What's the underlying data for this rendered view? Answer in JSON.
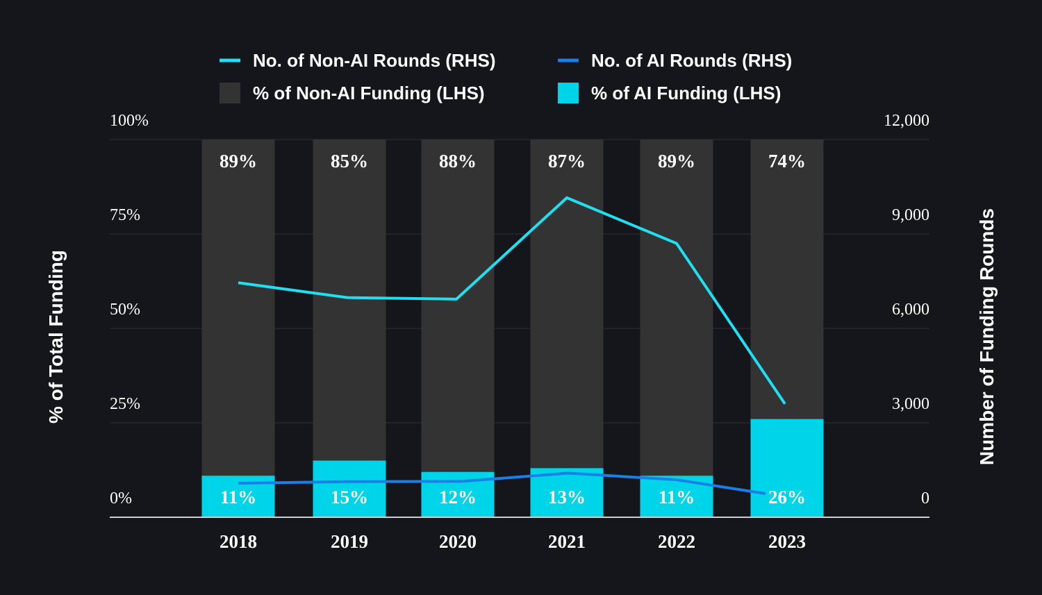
{
  "chart_data": {
    "type": "bar",
    "stacked": true,
    "categories": [
      "2018",
      "2019",
      "2020",
      "2021",
      "2022",
      "2023"
    ],
    "series": [
      {
        "name": "% of AI Funding (LHS)",
        "kind": "bar",
        "axis": "left",
        "values": [
          11,
          15,
          12,
          13,
          11,
          26
        ],
        "labels": [
          "11%",
          "15%",
          "12%",
          "13%",
          "11%",
          "26%"
        ],
        "color": "#00d4e8"
      },
      {
        "name": "% of Non-AI Funding (LHS)",
        "kind": "bar",
        "axis": "left",
        "values": [
          89,
          85,
          88,
          87,
          89,
          74
        ],
        "labels": [
          "89%",
          "85%",
          "88%",
          "87%",
          "89%",
          "74%"
        ],
        "color": "#333333"
      },
      {
        "name": "No. of Non-AI Rounds (RHS)",
        "kind": "line",
        "axis": "right",
        "values": [
          7450,
          6980,
          6930,
          10150,
          8700,
          3600
        ],
        "color": "#1fe0f0"
      },
      {
        "name": "No. of AI Rounds (RHS)",
        "kind": "line",
        "axis": "right",
        "values": [
          1080,
          1130,
          1140,
          1400,
          1190,
          750
        ],
        "color": "#1a7fe8"
      }
    ],
    "legend": [
      {
        "label": "No. of Non-AI Rounds (RHS)",
        "swatch": "line",
        "color": "#1fe0f0"
      },
      {
        "label": "No. of AI Rounds (RHS)",
        "swatch": "line",
        "color": "#1a7fe8"
      },
      {
        "label": "% of Non-AI Funding (LHS)",
        "swatch": "box",
        "color": "#333333"
      },
      {
        "label": "% of AI Funding (LHS)",
        "swatch": "box",
        "color": "#00d4e8"
      }
    ],
    "legend_position": "top",
    "ylabel": "% of Total Funding",
    "y2label": "Number of Funding Rounds",
    "ylim": [
      0,
      100
    ],
    "y2lim": [
      0,
      12000
    ],
    "yticks": [
      "0%",
      "25%",
      "50%",
      "75%",
      "100%"
    ],
    "y2ticks": [
      "0",
      "3,000",
      "6,000",
      "9,000",
      "12,000"
    ],
    "grid": true
  }
}
